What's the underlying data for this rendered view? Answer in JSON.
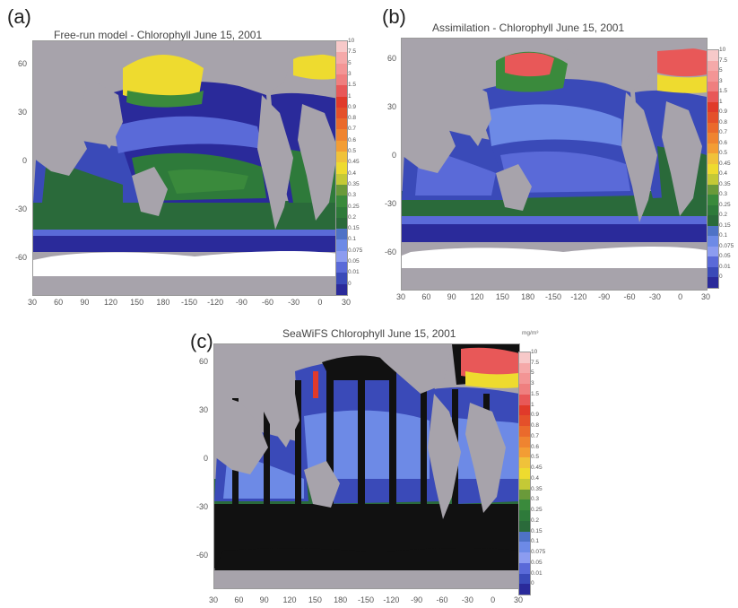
{
  "panels": [
    {
      "label": "(a)",
      "title": "Free-run model - Chlorophyll June 15, 2001"
    },
    {
      "label": "(b)",
      "title": "Assimilation - Chlorophyll June 15, 2001"
    },
    {
      "label": "(c)",
      "title": "SeaWiFS Chlorophyll June 15, 2001",
      "units": "mg/m³"
    }
  ],
  "axes": {
    "y_ticks": [
      "60",
      "30",
      "0",
      "-30",
      "-60"
    ],
    "x_ticks": [
      "30",
      "60",
      "90",
      "120",
      "150",
      "180",
      "-150",
      "-120",
      "-90",
      "-60",
      "-30",
      "0",
      "30"
    ]
  },
  "colorbar": {
    "labels": [
      "10",
      "7.5",
      "5",
      "3",
      "1.5",
      "1",
      "0.9",
      "0.8",
      "0.7",
      "0.6",
      "0.5",
      "0.45",
      "0.4",
      "0.35",
      "0.3",
      "0.25",
      "0.2",
      "0.15",
      "0.1",
      "0.075",
      "0.05",
      "0.01",
      "0"
    ],
    "colors": [
      "#f7c9c9",
      "#f5a9a9",
      "#f39595",
      "#ef7f7f",
      "#e85858",
      "#e03a2a",
      "#e4502a",
      "#ea6a2c",
      "#ef8430",
      "#f39d34",
      "#f0c23a",
      "#eedb2f",
      "#c4c936",
      "#6a9a3a",
      "#3a8a3c",
      "#2e7a3a",
      "#2a6a3a",
      "#4e72c6",
      "#6d8ae6",
      "#8c9cf0",
      "#5a6ad8",
      "#3a4ab8",
      "#2a2a9a"
    ]
  },
  "colors": {
    "land": "#a7a3ab",
    "ice": "#ffffff",
    "nodata": "#111111"
  }
}
